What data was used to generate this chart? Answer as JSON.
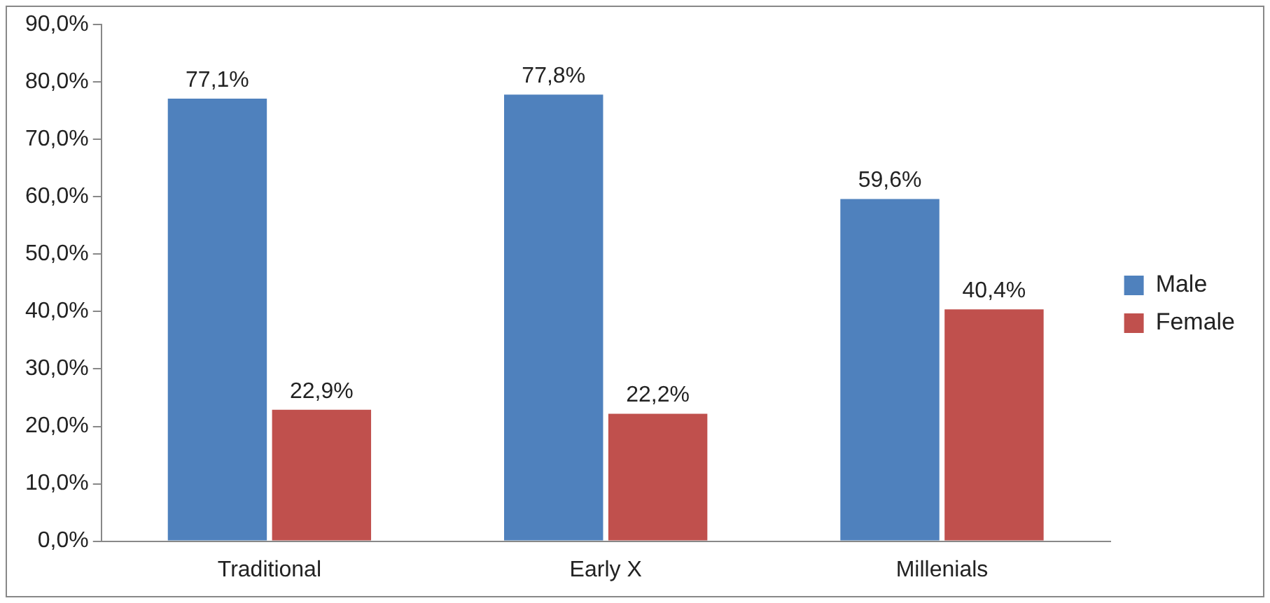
{
  "chart_data": {
    "type": "bar",
    "categories": [
      "Traditional",
      "Early X",
      "Millenials"
    ],
    "series": [
      {
        "name": "Male",
        "color": "#4f81bd",
        "values": [
          77.1,
          77.8,
          59.6
        ],
        "value_labels": [
          "77,1%",
          "77,8%",
          "59,6%"
        ]
      },
      {
        "name": "Female",
        "color": "#c0504d",
        "values": [
          22.9,
          22.2,
          40.4
        ],
        "value_labels": [
          "22,9%",
          "22,2%",
          "40,4%"
        ]
      }
    ],
    "ylim": [
      0,
      90
    ],
    "yticks": [
      {
        "value": 0,
        "label": "0,0%"
      },
      {
        "value": 10,
        "label": "10,0%"
      },
      {
        "value": 20,
        "label": "20,0%"
      },
      {
        "value": 30,
        "label": "30,0%"
      },
      {
        "value": 40,
        "label": "40,0%"
      },
      {
        "value": 50,
        "label": "50,0%"
      },
      {
        "value": 60,
        "label": "60,0%"
      },
      {
        "value": 70,
        "label": "70,0%"
      },
      {
        "value": 80,
        "label": "80,0%"
      },
      {
        "value": 90,
        "label": "90,0%"
      }
    ],
    "grid": false,
    "legend": "right"
  }
}
